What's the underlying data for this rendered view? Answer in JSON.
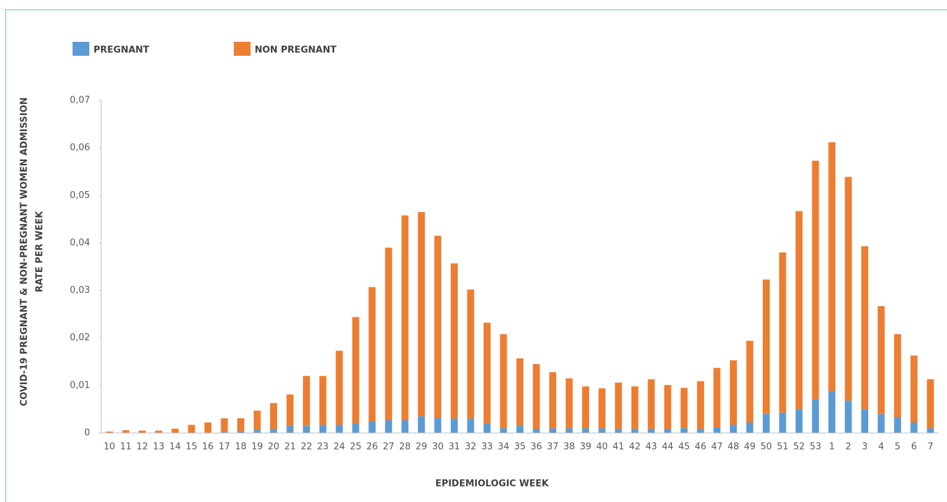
{
  "chart_data": {
    "type": "stacked_bar",
    "ylabel": [
      "COVID-19 PREGNANT & NON-PREGNANT WOMEN  ADMISSION",
      "RATE PER WEEK"
    ],
    "xlabel": "EPIDEMIOLOGIC WEEK",
    "categories": [
      "10",
      "11",
      "12",
      "13",
      "14",
      "15",
      "16",
      "17",
      "18",
      "19",
      "20",
      "21",
      "22",
      "23",
      "24",
      "25",
      "26",
      "27",
      "28",
      "29",
      "30",
      "31",
      "32",
      "33",
      "34",
      "35",
      "36",
      "37",
      "38",
      "39",
      "40",
      "41",
      "42",
      "43",
      "44",
      "45",
      "46",
      "47",
      "48",
      "49",
      "50",
      "51",
      "52",
      "53",
      "1",
      "2",
      "3",
      "4",
      "5",
      "6",
      "7"
    ],
    "series": [
      {
        "name": "PREGNANT",
        "color": "#5b9bd5",
        "values": [
          0,
          0,
          0,
          0,
          0,
          0,
          0,
          0.0002,
          0.0003,
          0.0007,
          0.0008,
          0.0015,
          0.0015,
          0.0017,
          0.0017,
          0.002,
          0.0025,
          0.0027,
          0.0027,
          0.0035,
          0.0032,
          0.003,
          0.003,
          0.002,
          0.001,
          0.0015,
          0.0008,
          0.001,
          0.001,
          0.001,
          0.001,
          0.0008,
          0.0008,
          0.0008,
          0.0008,
          0.001,
          0.0008,
          0.0012,
          0.0017,
          0.0022,
          0.004,
          0.0043,
          0.005,
          0.007,
          0.0088,
          0.0068,
          0.005,
          0.004,
          0.0033,
          0.0022,
          0.001
        ]
      },
      {
        "name": "NON PREGNANT",
        "color": "#ed7d31",
        "values": [
          0.0003,
          0.0006,
          0.0005,
          0.0005,
          0.0009,
          0.0017,
          0.0022,
          0.0029,
          0.0028,
          0.004,
          0.0055,
          0.0066,
          0.0105,
          0.0103,
          0.0156,
          0.0224,
          0.0282,
          0.0363,
          0.0431,
          0.043,
          0.0383,
          0.0327,
          0.0272,
          0.0212,
          0.0198,
          0.0142,
          0.0137,
          0.0118,
          0.0105,
          0.0088,
          0.0084,
          0.0098,
          0.009,
          0.0105,
          0.0093,
          0.0085,
          0.0101,
          0.0125,
          0.0136,
          0.0172,
          0.0283,
          0.0337,
          0.0417,
          0.0503,
          0.0524,
          0.0471,
          0.0343,
          0.0227,
          0.0175,
          0.0141,
          0.0103
        ]
      }
    ],
    "ylim": [
      0,
      0.07
    ],
    "yticks": [
      0,
      {
        "value": 0.01,
        "label": "0,01"
      },
      {
        "value": 0.02,
        "label": "0,02"
      },
      {
        "value": 0.03,
        "label": "0,03"
      },
      {
        "value": 0.04,
        "label": "0,04"
      },
      {
        "value": 0.05,
        "label": "0,05"
      },
      {
        "value": 0.06,
        "label": "0,06"
      },
      {
        "value": 0.07,
        "label": "0,07"
      }
    ],
    "grid": false
  }
}
